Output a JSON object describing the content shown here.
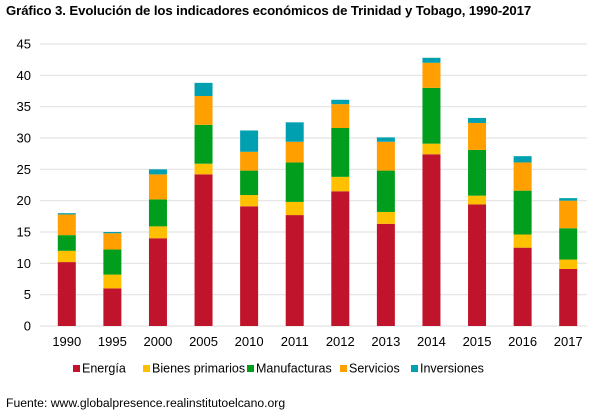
{
  "title": "Gráfico 3. Evolución de los indicadores económicos de Trinidad y Tobago, 1990-2017",
  "source": "Fuente: www.globalpresence.realinstitutoelcano.org",
  "chart_data": {
    "type": "bar",
    "stacked": true,
    "title": "Gráfico 3. Evolución de los indicadores económicos de Trinidad y Tobago, 1990-2017",
    "xlabel": "",
    "ylabel": "",
    "ylim": [
      0,
      45
    ],
    "yticks": [
      0,
      5,
      10,
      15,
      20,
      25,
      30,
      35,
      40,
      45
    ],
    "grid": true,
    "legend_position": "bottom",
    "categories": [
      "1990",
      "1995",
      "2000",
      "2005",
      "2010",
      "2011",
      "2012",
      "2013",
      "2014",
      "2015",
      "2016",
      "2017"
    ],
    "series": [
      {
        "name": "Energía",
        "color": "#C0142C",
        "values": [
          10.2,
          6.0,
          14.0,
          24.2,
          19.1,
          17.7,
          21.5,
          16.3,
          27.4,
          19.4,
          12.5,
          9.1
        ]
      },
      {
        "name": "Bienes primarios",
        "color": "#FFC000",
        "values": [
          1.8,
          2.2,
          1.9,
          1.7,
          1.8,
          2.1,
          2.3,
          1.9,
          1.7,
          1.4,
          2.1,
          1.5
        ]
      },
      {
        "name": "Manufacturas",
        "color": "#009E1C",
        "values": [
          2.5,
          4.0,
          4.3,
          6.2,
          3.9,
          6.3,
          7.8,
          6.6,
          8.9,
          7.3,
          7.0,
          5.0
        ]
      },
      {
        "name": "Servicios",
        "color": "#FF9F00",
        "values": [
          3.3,
          2.6,
          4.0,
          4.6,
          3.0,
          3.3,
          3.8,
          4.6,
          4.0,
          4.3,
          4.5,
          4.4
        ]
      },
      {
        "name": "Inversiones",
        "color": "#00A0B0",
        "values": [
          0.2,
          0.2,
          0.8,
          2.1,
          3.4,
          3.1,
          0.7,
          0.7,
          0.8,
          0.8,
          1.0,
          0.4
        ]
      }
    ]
  }
}
